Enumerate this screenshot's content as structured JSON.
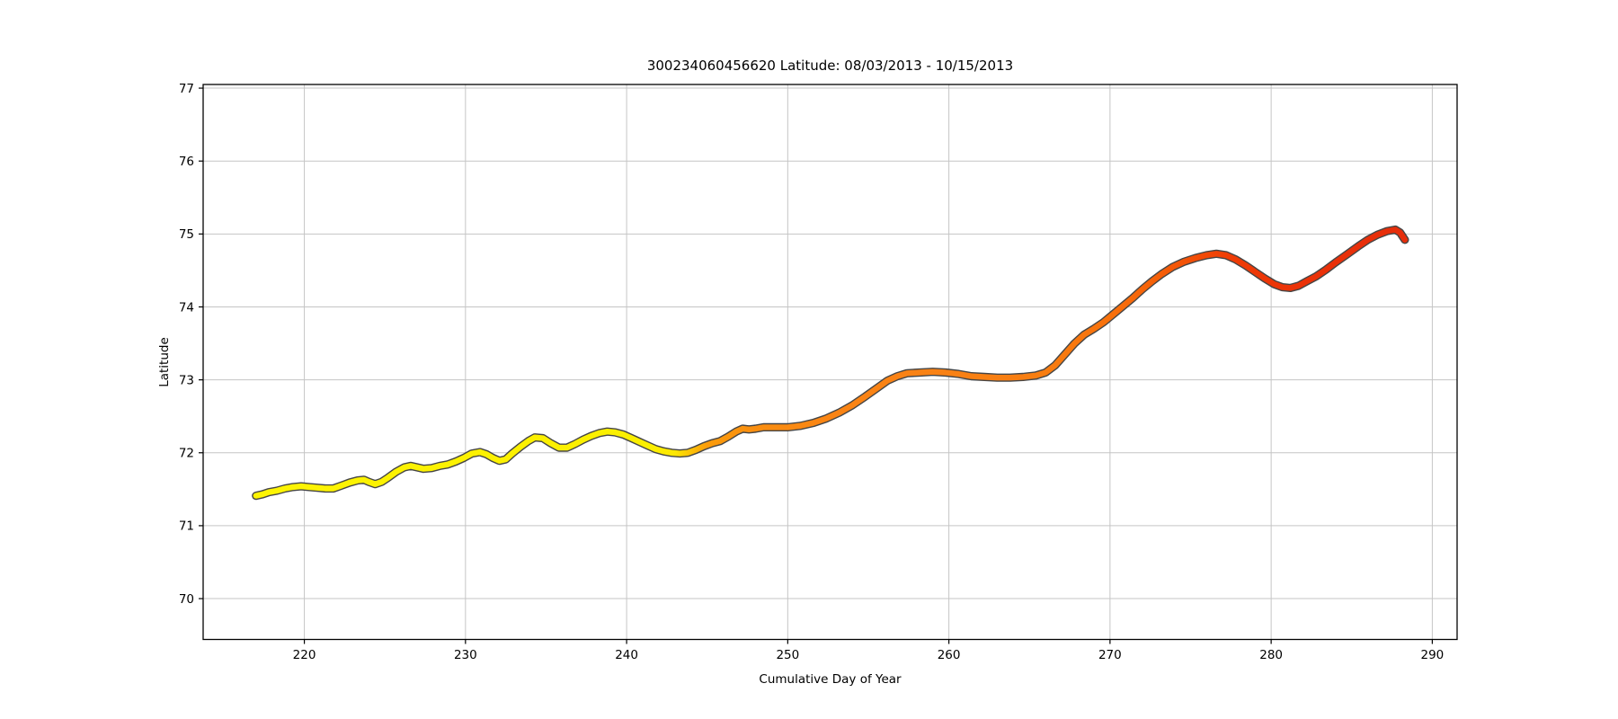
{
  "figure": {
    "background": "#ffffff"
  },
  "chart_data": {
    "type": "scatter",
    "title": "300234060456620 Latitude: 08/03/2013 - 10/15/2013",
    "xlabel": "Cumulative Day of Year",
    "ylabel": "Latitude",
    "xlim": [
      213.72,
      291.54
    ],
    "ylim": [
      69.44,
      77.05
    ],
    "xticks": [
      220,
      230,
      240,
      250,
      260,
      270,
      280,
      290
    ],
    "yticks": [
      70,
      71,
      72,
      73,
      74,
      75,
      76,
      77
    ],
    "grid": true,
    "grid_color": "#c5c5c5",
    "spine_color": "#000000",
    "series": [
      {
        "name": "latitude-track",
        "color_by": "cumulative day of year",
        "marker_edge_color": "#454545",
        "color_start": "#fdf403",
        "color_end": "#e62e0b",
        "color_stops": [
          [
            217.0,
            "#fdf403"
          ],
          [
            241.5,
            "#fbef00"
          ],
          [
            243.0,
            "#fde702"
          ],
          [
            245.0,
            "#fb9c0b"
          ],
          [
            248.0,
            "#fa8e10"
          ],
          [
            253.0,
            "#fa8414"
          ],
          [
            260.0,
            "#f98114"
          ],
          [
            266.0,
            "#f87d10"
          ],
          [
            270.0,
            "#f8710c"
          ],
          [
            273.0,
            "#f55f08"
          ],
          [
            275.5,
            "#f24b06"
          ],
          [
            277.5,
            "#ef3d06"
          ],
          [
            280.0,
            "#ec3507"
          ],
          [
            284.0,
            "#e93009"
          ],
          [
            288.3,
            "#e62e0b"
          ]
        ],
        "points": [
          [
            217.0,
            71.41
          ],
          [
            217.4,
            71.43
          ],
          [
            217.8,
            71.46
          ],
          [
            218.3,
            71.48
          ],
          [
            218.8,
            71.51
          ],
          [
            219.3,
            71.53
          ],
          [
            219.8,
            71.54
          ],
          [
            220.3,
            71.53
          ],
          [
            220.8,
            71.52
          ],
          [
            221.3,
            71.51
          ],
          [
            221.8,
            71.51
          ],
          [
            222.3,
            71.55
          ],
          [
            222.8,
            71.59
          ],
          [
            223.3,
            71.62
          ],
          [
            223.7,
            71.63
          ],
          [
            224.0,
            71.6
          ],
          [
            224.4,
            71.57
          ],
          [
            224.8,
            71.6
          ],
          [
            225.2,
            71.66
          ],
          [
            225.7,
            71.74
          ],
          [
            226.2,
            71.8
          ],
          [
            226.6,
            71.82
          ],
          [
            227.0,
            71.8
          ],
          [
            227.4,
            71.78
          ],
          [
            227.9,
            71.79
          ],
          [
            228.4,
            71.82
          ],
          [
            228.9,
            71.84
          ],
          [
            229.4,
            71.88
          ],
          [
            229.9,
            71.93
          ],
          [
            230.4,
            71.99
          ],
          [
            230.9,
            72.01
          ],
          [
            231.3,
            71.98
          ],
          [
            231.7,
            71.93
          ],
          [
            232.1,
            71.89
          ],
          [
            232.5,
            71.91
          ],
          [
            232.9,
            71.99
          ],
          [
            233.4,
            72.08
          ],
          [
            233.9,
            72.16
          ],
          [
            234.3,
            72.21
          ],
          [
            234.8,
            72.2
          ],
          [
            235.3,
            72.13
          ],
          [
            235.8,
            72.07
          ],
          [
            236.3,
            72.07
          ],
          [
            236.8,
            72.12
          ],
          [
            237.3,
            72.18
          ],
          [
            237.8,
            72.23
          ],
          [
            238.3,
            72.27
          ],
          [
            238.8,
            72.29
          ],
          [
            239.3,
            72.28
          ],
          [
            239.8,
            72.25
          ],
          [
            240.3,
            72.2
          ],
          [
            240.8,
            72.15
          ],
          [
            241.3,
            72.1
          ],
          [
            241.8,
            72.05
          ],
          [
            242.3,
            72.02
          ],
          [
            242.8,
            72.0
          ],
          [
            243.3,
            71.99
          ],
          [
            243.8,
            72.0
          ],
          [
            244.3,
            72.04
          ],
          [
            244.8,
            72.09
          ],
          [
            245.3,
            72.13
          ],
          [
            245.8,
            72.16
          ],
          [
            246.3,
            72.22
          ],
          [
            246.8,
            72.29
          ],
          [
            247.2,
            72.33
          ],
          [
            247.6,
            72.32
          ],
          [
            248.0,
            72.33
          ],
          [
            248.5,
            72.35
          ],
          [
            249.2,
            72.35
          ],
          [
            250.0,
            72.35
          ],
          [
            250.8,
            72.37
          ],
          [
            251.6,
            72.41
          ],
          [
            252.4,
            72.47
          ],
          [
            253.2,
            72.55
          ],
          [
            254.0,
            72.65
          ],
          [
            254.8,
            72.77
          ],
          [
            255.5,
            72.88
          ],
          [
            256.2,
            72.99
          ],
          [
            256.8,
            73.05
          ],
          [
            257.4,
            73.09
          ],
          [
            258.2,
            73.1
          ],
          [
            259.0,
            73.11
          ],
          [
            259.8,
            73.1
          ],
          [
            260.6,
            73.08
          ],
          [
            261.4,
            73.05
          ],
          [
            262.2,
            73.04
          ],
          [
            263.0,
            73.03
          ],
          [
            263.8,
            73.03
          ],
          [
            264.6,
            73.04
          ],
          [
            265.4,
            73.06
          ],
          [
            266.0,
            73.1
          ],
          [
            266.6,
            73.2
          ],
          [
            267.2,
            73.35
          ],
          [
            267.8,
            73.5
          ],
          [
            268.4,
            73.62
          ],
          [
            269.0,
            73.7
          ],
          [
            269.6,
            73.79
          ],
          [
            270.2,
            73.9
          ],
          [
            270.8,
            74.01
          ],
          [
            271.4,
            74.12
          ],
          [
            272.0,
            74.24
          ],
          [
            272.6,
            74.35
          ],
          [
            273.2,
            74.45
          ],
          [
            273.9,
            74.55
          ],
          [
            274.6,
            74.62
          ],
          [
            275.3,
            74.67
          ],
          [
            276.0,
            74.71
          ],
          [
            276.6,
            74.73
          ],
          [
            277.2,
            74.71
          ],
          [
            277.8,
            74.65
          ],
          [
            278.4,
            74.57
          ],
          [
            279.0,
            74.48
          ],
          [
            279.6,
            74.39
          ],
          [
            280.2,
            74.31
          ],
          [
            280.7,
            74.27
          ],
          [
            281.2,
            74.26
          ],
          [
            281.7,
            74.29
          ],
          [
            282.2,
            74.35
          ],
          [
            282.8,
            74.42
          ],
          [
            283.4,
            74.51
          ],
          [
            284.0,
            74.61
          ],
          [
            284.7,
            74.72
          ],
          [
            285.4,
            74.83
          ],
          [
            286.0,
            74.92
          ],
          [
            286.6,
            74.99
          ],
          [
            287.2,
            75.04
          ],
          [
            287.7,
            75.06
          ],
          [
            288.0,
            75.02
          ],
          [
            288.3,
            74.92
          ]
        ]
      }
    ]
  }
}
